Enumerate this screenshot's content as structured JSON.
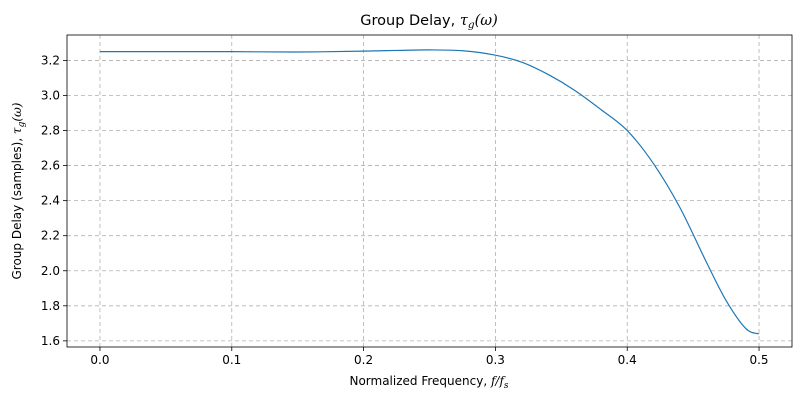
{
  "chart_data": {
    "type": "line",
    "title": {
      "text": "Group Delay, ",
      "symbol": "τ",
      "sub": "g",
      "arg": "(ω)"
    },
    "xlabel": {
      "text": "Normalized Frequency, ",
      "symbol": "f/f",
      "sub": "s"
    },
    "ylabel": {
      "text": "Group Delay (samples), ",
      "symbol": "τ",
      "sub": "g",
      "arg": "(ω)"
    },
    "xlim": [
      -0.025,
      0.525
    ],
    "ylim": [
      1.565,
      3.345
    ],
    "grid": true,
    "line_color": "#1f77b4",
    "grid_color": "#b0b0b0",
    "xticks": [
      0.0,
      0.1,
      0.2,
      0.3,
      0.4,
      0.5
    ],
    "xtick_labels": [
      "0.0",
      "0.1",
      "0.2",
      "0.3",
      "0.4",
      "0.5"
    ],
    "yticks": [
      1.6,
      1.8,
      2.0,
      2.2,
      2.4,
      2.6,
      2.8,
      3.0,
      3.2
    ],
    "ytick_labels": [
      "1.6",
      "1.8",
      "2.0",
      "2.2",
      "2.4",
      "2.6",
      "2.8",
      "3.0",
      "3.2"
    ],
    "series": [
      {
        "x": [
          0.0,
          0.05,
          0.1,
          0.15,
          0.2,
          0.225,
          0.25,
          0.275,
          0.3,
          0.32,
          0.34,
          0.36,
          0.38,
          0.4,
          0.42,
          0.44,
          0.46,
          0.475,
          0.49,
          0.5
        ],
        "y": [
          3.25,
          3.25,
          3.25,
          3.248,
          3.253,
          3.257,
          3.26,
          3.255,
          3.23,
          3.19,
          3.12,
          3.03,
          2.92,
          2.8,
          2.61,
          2.36,
          2.05,
          1.83,
          1.67,
          1.64
        ]
      }
    ]
  }
}
